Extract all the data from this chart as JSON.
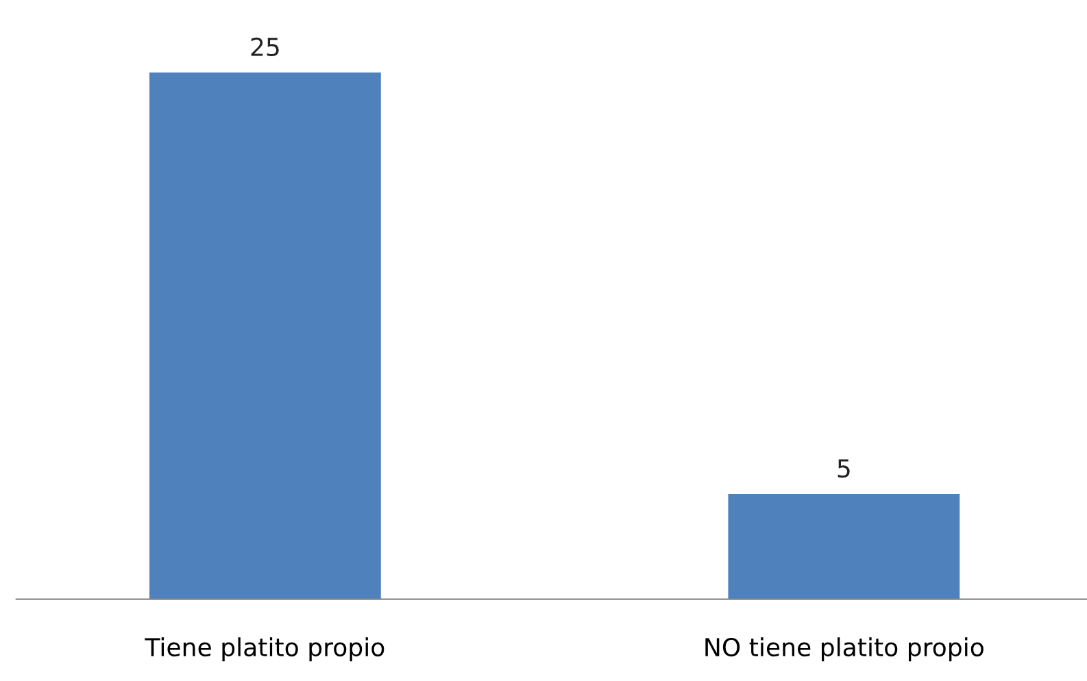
{
  "chart_data": {
    "type": "bar",
    "categories": [
      "Tiene platito propio",
      "NO tiene platito propio"
    ],
    "values": [
      25,
      5
    ],
    "color": "#4f81bd",
    "data_labels": true,
    "grid": false,
    "legend": false
  }
}
